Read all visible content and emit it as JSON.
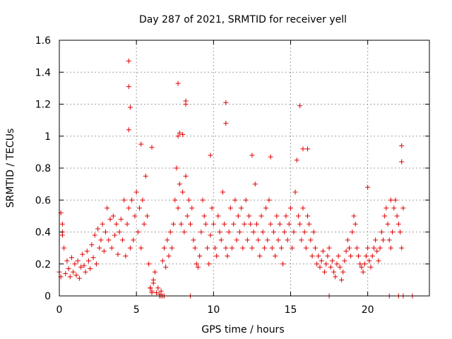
{
  "chart_data": {
    "type": "scatter",
    "title": "Day 287 of 2021, SRMTID for receiver yell",
    "xlabel": "GPS time / hours",
    "ylabel": "SRMTID / TECUs",
    "xlim": [
      0,
      24
    ],
    "ylim": [
      0,
      1.6
    ],
    "xticks": [
      0,
      5,
      10,
      15,
      20
    ],
    "yticks": [
      0,
      0.2,
      0.4,
      0.6,
      0.8,
      1,
      1.2,
      1.4,
      1.6
    ],
    "xtick_labels": [
      "0",
      "5",
      "10",
      "15",
      "20"
    ],
    "ytick_labels": [
      "0",
      "0.2",
      "0.4",
      "0.6",
      "0.8",
      "1",
      "1.2",
      "1.4",
      "1.6"
    ],
    "grid": true,
    "marker": "plus",
    "series_color": "#e00000",
    "series": [
      {
        "name": "SRMTID",
        "x": [
          0.0,
          0.1,
          0.2,
          0.3,
          0.4,
          0.5,
          0.6,
          0.7,
          0.8,
          0.9,
          1.0,
          1.1,
          1.2,
          1.3,
          1.4,
          1.5,
          1.6,
          1.7,
          1.8,
          1.9,
          2.0,
          2.1,
          2.2,
          2.3,
          2.4,
          2.5,
          2.6,
          2.7,
          2.8,
          2.9,
          3.0,
          3.1,
          3.2,
          3.3,
          3.4,
          3.5,
          3.6,
          3.7,
          3.8,
          3.9,
          4.0,
          4.1,
          4.2,
          4.3,
          4.4,
          4.5,
          4.6,
          4.7,
          4.8,
          4.9,
          5.0,
          5.1,
          5.2,
          5.3,
          5.4,
          5.5,
          5.6,
          5.7,
          5.8,
          5.9,
          6.0,
          6.1,
          6.2,
          6.3,
          6.4,
          6.5,
          6.6,
          6.7,
          6.8,
          6.9,
          7.0,
          7.1,
          7.2,
          7.3,
          7.4,
          7.5,
          7.6,
          7.7,
          7.8,
          7.9,
          8.0,
          8.1,
          8.2,
          8.3,
          8.4,
          8.5,
          8.6,
          8.7,
          8.8,
          8.9,
          9.0,
          9.1,
          9.2,
          9.3,
          9.4,
          9.5,
          9.6,
          9.7,
          9.8,
          9.9,
          10.0,
          10.1,
          10.2,
          10.3,
          10.4,
          10.5,
          10.6,
          10.7,
          10.8,
          10.9,
          11.0,
          11.1,
          11.2,
          11.3,
          11.4,
          11.5,
          11.6,
          11.7,
          11.8,
          11.9,
          12.0,
          12.1,
          12.2,
          12.3,
          12.4,
          12.5,
          12.6,
          12.7,
          12.8,
          12.9,
          13.0,
          13.1,
          13.2,
          13.3,
          13.4,
          13.5,
          13.6,
          13.7,
          13.8,
          13.9,
          14.0,
          14.1,
          14.2,
          14.3,
          14.4,
          14.5,
          14.6,
          14.7,
          14.8,
          14.9,
          15.0,
          15.1,
          15.2,
          15.3,
          15.4,
          15.5,
          15.6,
          15.7,
          15.8,
          15.9,
          16.0,
          16.1,
          16.2,
          16.3,
          16.4,
          16.5,
          16.6,
          16.7,
          16.8,
          16.9,
          17.0,
          17.1,
          17.2,
          17.3,
          17.4,
          17.5,
          17.6,
          17.7,
          17.8,
          17.9,
          18.0,
          18.1,
          18.2,
          18.3,
          18.4,
          18.5,
          18.6,
          18.7,
          18.8,
          18.9,
          19.0,
          19.1,
          19.2,
          19.3,
          19.4,
          19.5,
          19.6,
          19.7,
          19.8,
          19.9,
          20.0,
          20.1,
          20.2,
          20.3,
          20.4,
          20.5,
          20.6,
          20.7,
          20.8,
          20.9,
          21.0,
          21.1,
          21.2,
          21.3,
          21.4,
          21.5,
          21.6,
          21.7,
          21.8,
          21.9,
          22.0,
          22.1,
          22.2,
          22.3,
          4.5,
          4.5,
          7.7,
          10.8,
          15.6,
          8.2,
          8.2,
          7.7,
          7.8,
          10.8,
          15.8,
          4.6,
          4.5,
          5.3,
          6.0,
          8.0,
          9.8,
          12.5,
          13.7,
          16.1,
          20.0,
          21.5,
          22.2,
          22.2,
          0.1,
          0.2,
          0.2,
          8.5,
          17.5,
          21.4,
          22.0,
          22.3,
          22.9,
          6.5,
          6.6,
          6.7,
          6.8,
          5.9,
          6.0,
          6.1
        ],
        "y": [
          0.15,
          0.12,
          0.38,
          0.3,
          0.14,
          0.22,
          0.17,
          0.12,
          0.24,
          0.15,
          0.2,
          0.13,
          0.22,
          0.11,
          0.18,
          0.26,
          0.19,
          0.15,
          0.28,
          0.22,
          0.17,
          0.32,
          0.24,
          0.38,
          0.2,
          0.42,
          0.3,
          0.35,
          0.45,
          0.28,
          0.4,
          0.55,
          0.35,
          0.48,
          0.3,
          0.5,
          0.38,
          0.45,
          0.26,
          0.4,
          0.48,
          0.35,
          0.6,
          0.25,
          0.45,
          0.55,
          0.3,
          0.6,
          0.35,
          0.5,
          0.65,
          0.4,
          0.55,
          0.3,
          0.6,
          0.45,
          0.75,
          0.5,
          0.2,
          0.05,
          0.03,
          0.1,
          0.15,
          0.02,
          0.05,
          0.01,
          0.03,
          0.22,
          0.3,
          0.18,
          0.35,
          0.25,
          0.4,
          0.3,
          0.45,
          0.6,
          0.8,
          0.55,
          0.7,
          0.45,
          0.65,
          0.4,
          0.75,
          0.5,
          0.6,
          0.45,
          0.55,
          0.35,
          0.3,
          0.2,
          0.18,
          0.25,
          0.4,
          0.6,
          0.5,
          0.45,
          0.3,
          0.2,
          0.38,
          0.55,
          0.45,
          0.3,
          0.25,
          0.5,
          0.4,
          0.35,
          0.65,
          0.45,
          0.3,
          0.25,
          0.4,
          0.55,
          0.3,
          0.45,
          0.6,
          0.35,
          0.5,
          0.4,
          0.55,
          0.3,
          0.45,
          0.6,
          0.35,
          0.5,
          0.45,
          0.3,
          0.4,
          0.7,
          0.45,
          0.35,
          0.25,
          0.5,
          0.4,
          0.3,
          0.55,
          0.35,
          0.6,
          0.45,
          0.3,
          0.4,
          0.25,
          0.5,
          0.35,
          0.45,
          0.3,
          0.2,
          0.4,
          0.5,
          0.35,
          0.45,
          0.55,
          0.3,
          0.4,
          0.65,
          0.85,
          0.5,
          0.45,
          0.35,
          0.55,
          0.4,
          0.3,
          0.5,
          0.45,
          0.35,
          0.25,
          0.4,
          0.3,
          0.2,
          0.25,
          0.18,
          0.22,
          0.28,
          0.15,
          0.2,
          0.25,
          0.3,
          0.18,
          0.22,
          0.15,
          0.12,
          0.2,
          0.25,
          0.18,
          0.1,
          0.15,
          0.22,
          0.28,
          0.35,
          0.3,
          0.25,
          0.4,
          0.5,
          0.45,
          0.3,
          0.25,
          0.2,
          0.18,
          0.15,
          0.2,
          0.25,
          0.3,
          0.22,
          0.18,
          0.25,
          0.3,
          0.35,
          0.28,
          0.22,
          0.3,
          0.4,
          0.35,
          0.5,
          0.55,
          0.45,
          0.35,
          0.3,
          0.4,
          0.55,
          0.6,
          0.5,
          0.45,
          0.4,
          0.3,
          0.55,
          1.47,
          1.31,
          1.33,
          1.21,
          1.19,
          1.22,
          1.2,
          1.0,
          1.02,
          1.08,
          0.92,
          1.18,
          1.04,
          0.95,
          0.93,
          1.01,
          0.88,
          0.88,
          0.87,
          0.92,
          0.68,
          0.6,
          0.94,
          0.84,
          0.52,
          0.45,
          0.4,
          0.0,
          0.0,
          0.0,
          0.0,
          0.0,
          0.0,
          0.0,
          0.0,
          0.0,
          0.0,
          0.05,
          0.02,
          0.08
        ]
      }
    ]
  }
}
